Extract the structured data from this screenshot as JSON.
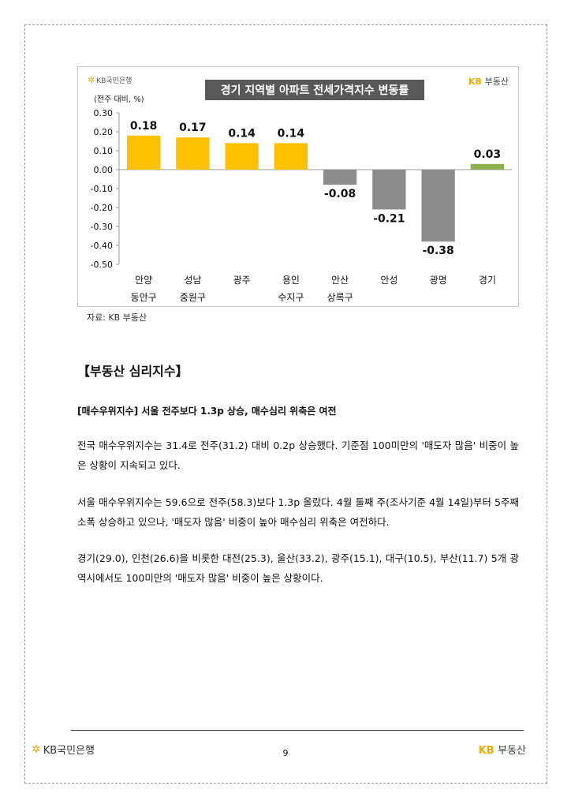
{
  "header": {
    "kb_bank": "KB국민은행",
    "kb_realty_prefix": "KB",
    "kb_realty_suffix": "부동산"
  },
  "chart_data": {
    "type": "bar",
    "title": "경기 지역별 아파트 전세가격지수 변동률",
    "ylabel": "(전주 대비, %)",
    "categories": [
      [
        "안양",
        "동안구"
      ],
      [
        "성남",
        "중원구"
      ],
      [
        "광주",
        ""
      ],
      [
        "용인",
        "수지구"
      ],
      [
        "안산",
        "상록구"
      ],
      [
        "안성",
        ""
      ],
      [
        "광명",
        ""
      ],
      [
        "경기",
        ""
      ]
    ],
    "values": [
      0.18,
      0.17,
      0.14,
      0.14,
      -0.08,
      -0.21,
      -0.38,
      0.03
    ],
    "value_labels": [
      "0.18",
      "0.17",
      "0.14",
      "0.14",
      "-0.08",
      "-0.21",
      "-0.38",
      "0.03"
    ],
    "ylim": [
      -0.5,
      0.3
    ],
    "yticks": [
      "0.30",
      "0.20",
      "0.10",
      "0.00",
      "-0.10",
      "-0.20",
      "-0.30",
      "-0.40",
      "-0.50"
    ],
    "ytick_values": [
      0.3,
      0.2,
      0.1,
      0.0,
      -0.1,
      -0.2,
      -0.3,
      -0.4,
      -0.5
    ],
    "colors": {
      "positive": "#FFC000",
      "negative": "#8C8C8C",
      "total": "#8DB04E"
    },
    "grid": false,
    "legend": "none"
  },
  "source": "자료: KB 부동산",
  "section_title": "【부동산 심리지수】",
  "sub_title": "[매수우위지수] 서울 전주보다 1.3p 상승, 매수심리 위축은 여전",
  "paragraphs": [
    "전국 매수우위지수는 31.4로 전주(31.2) 대비 0.2p 상승했다. 기준점 100미만의 '매도자 많음' 비중이 높은 상황이 지속되고 있다.",
    "서울 매수우위지수는 59.6으로 전주(58.3)보다 1.3p 올랐다. 4월 둘째 주(조사기준 4월 14일)부터 5주째 소폭 상승하고 있으나, '매도자 많음' 비중이 높아 매수심리 위축은 여전하다.",
    "경기(29.0), 인천(26.6)을 비롯한 대전(25.3), 울산(33.2), 광주(15.1), 대구(10.5), 부산(11.7) 5개 광역시에서도 100미만의 '매도자 많음' 비중이 높은 상황이다."
  ],
  "footer": {
    "bank": "KB국민은행",
    "page_number": "9",
    "realty_prefix": "KB",
    "realty_suffix": "부동산"
  }
}
